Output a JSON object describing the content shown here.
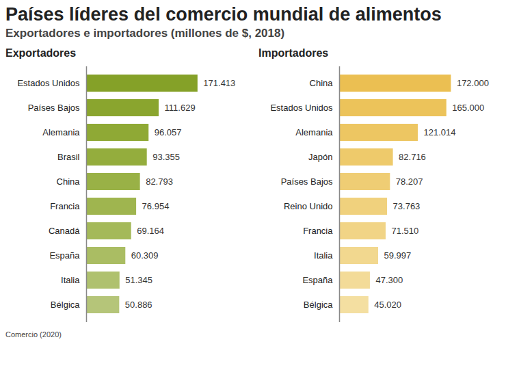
{
  "title": "Países líderes del comercio mundial de alimentos",
  "subtitle": "Exportadores e importadores (millones de $, 2018)",
  "source": "Comercio (2020)",
  "chart_data": [
    {
      "type": "bar",
      "title": "Exportadores",
      "orientation": "horizontal",
      "data_labels": true,
      "tick_labels": "y",
      "categories": [
        "Estados Unidos",
        "Países Bajos",
        "Alemania",
        "Brasil",
        "China",
        "Francia",
        "Canadá",
        "España",
        "Italia",
        "Bélgica"
      ],
      "values": [
        171413,
        111629,
        96057,
        93355,
        82793,
        76954,
        69164,
        60309,
        51345,
        50886
      ],
      "value_labels": [
        "171.413",
        "111.629",
        "96.057",
        "93.355",
        "82.793",
        "76.954",
        "69.164",
        "60.309",
        "51.345",
        "50.886"
      ],
      "colors": [
        "#85a128",
        "#8aa52e",
        "#8fa935",
        "#94ad3d",
        "#99b146",
        "#9fb54f",
        "#a4b959",
        "#aabd63",
        "#afc16e",
        "#b5c579"
      ],
      "xlim": [
        0,
        180000
      ]
    },
    {
      "type": "bar",
      "title": "Importadores",
      "orientation": "horizontal",
      "data_labels": true,
      "tick_labels": "y",
      "categories": [
        "China",
        "Estados Unidos",
        "Alemania",
        "Japón",
        "Países Bajos",
        "Reino Unido",
        "Francia",
        "Italia",
        "España",
        "Bélgica"
      ],
      "values": [
        172000,
        165000,
        121014,
        82716,
        78207,
        73763,
        71510,
        59997,
        47300,
        45020
      ],
      "value_labels": [
        "172.000",
        "165.000",
        "121.014",
        "82.716",
        "78.207",
        "73.763",
        "71.510",
        "59.997",
        "47.300",
        "45.020"
      ],
      "colors": [
        "#ebbf52",
        "#ecc35a",
        "#edc662",
        "#eeca6b",
        "#efcd74",
        "#f0d17d",
        "#f1d486",
        "#f2d88f",
        "#f3db98",
        "#f4dfa1"
      ],
      "xlim": [
        0,
        180000
      ]
    }
  ]
}
